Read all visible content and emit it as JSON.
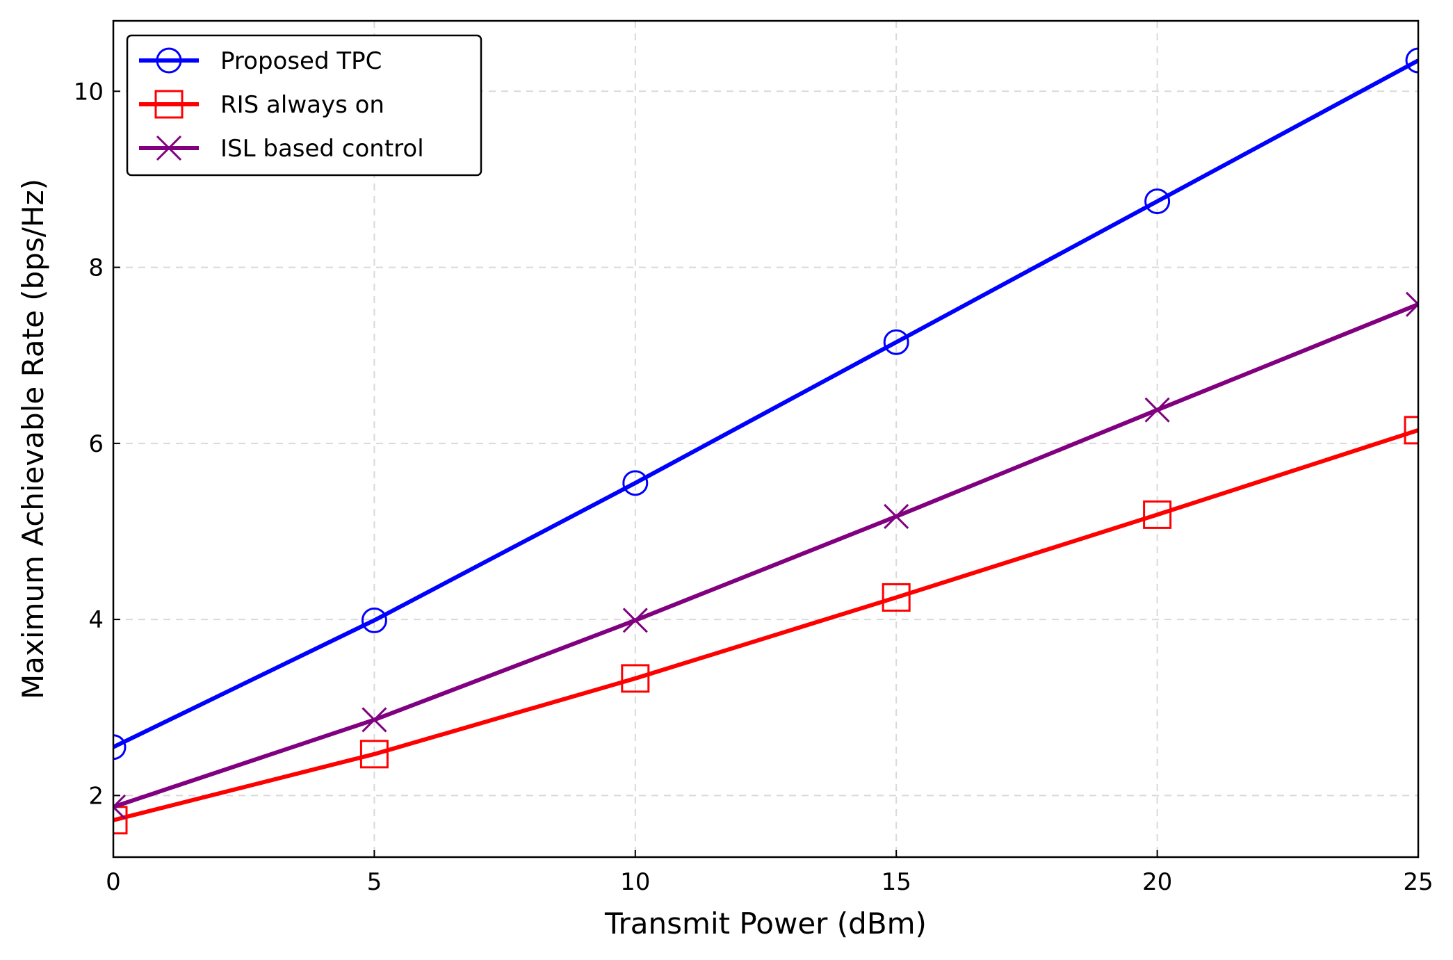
{
  "chart_data": {
    "type": "line",
    "title": "",
    "xlabel": "Transmit Power (dBm)",
    "ylabel": "Maximum Achievable Rate (bps/Hz)",
    "x": [
      0,
      5,
      10,
      15,
      20,
      25
    ],
    "xlim": [
      0,
      25
    ],
    "ylim": [
      1.3,
      10.8
    ],
    "xticks": [
      0,
      5,
      10,
      15,
      20,
      25
    ],
    "yticks": [
      2,
      4,
      6,
      8,
      10
    ],
    "grid": true,
    "legend_position": "top-left",
    "series": [
      {
        "name": "Proposed TPC",
        "values": [
          2.55,
          3.99,
          5.55,
          7.15,
          8.75,
          10.35
        ],
        "color": "#0000ff",
        "marker": "circle"
      },
      {
        "name": "RIS always on",
        "values": [
          1.72,
          2.47,
          3.33,
          4.25,
          5.19,
          6.15
        ],
        "color": "#ff0000",
        "marker": "square"
      },
      {
        "name": "ISL based control",
        "values": [
          1.87,
          2.86,
          3.99,
          5.17,
          6.38,
          7.58
        ],
        "color": "#800080",
        "marker": "x"
      }
    ]
  }
}
